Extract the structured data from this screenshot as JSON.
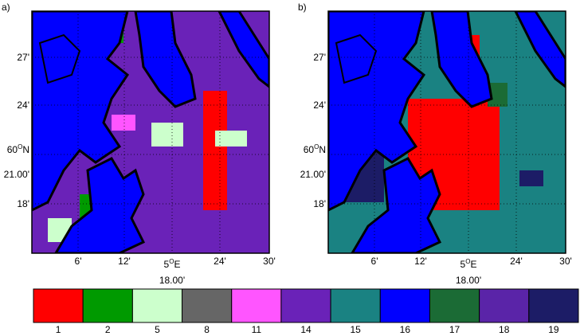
{
  "panels": [
    {
      "label": "a)",
      "lat_ticks": [
        "27'",
        "24'",
        "21.00'",
        "18'"
      ],
      "lat_main": {
        "number": "60",
        "degree": "O",
        "hemisphere": "N"
      },
      "lon_ticks": [
        "6'",
        "12'",
        "24'",
        "30'"
      ],
      "lon_main": {
        "number": "5",
        "degree": "O",
        "hemisphere": "E"
      },
      "lon_sub": "18.00'"
    },
    {
      "label": "b)",
      "lat_ticks": [
        "27'",
        "24'",
        "21.00'",
        "18'"
      ],
      "lat_main": {
        "number": "60",
        "degree": "O",
        "hemisphere": "N"
      },
      "lon_ticks": [
        "6'",
        "12'",
        "24'",
        "30'"
      ],
      "lon_main": {
        "number": "5",
        "degree": "O",
        "hemisphere": "E"
      },
      "lon_sub": "18.00'"
    }
  ],
  "legend": {
    "items": [
      {
        "label": "1",
        "color": "#ff0000"
      },
      {
        "label": "2",
        "color": "#009a00"
      },
      {
        "label": "5",
        "color": "#ccffcc"
      },
      {
        "label": "8",
        "color": "#666666"
      },
      {
        "label": "11",
        "color": "#ff55ff"
      },
      {
        "label": "14",
        "color": "#6a22b8"
      },
      {
        "label": "15",
        "color": "#1a8282"
      },
      {
        "label": "16",
        "color": "#0000ff"
      },
      {
        "label": "17",
        "color": "#1b6b35"
      },
      {
        "label": "18",
        "color": "#5a24a8"
      },
      {
        "label": "19",
        "color": "#1c1c66"
      }
    ]
  }
}
